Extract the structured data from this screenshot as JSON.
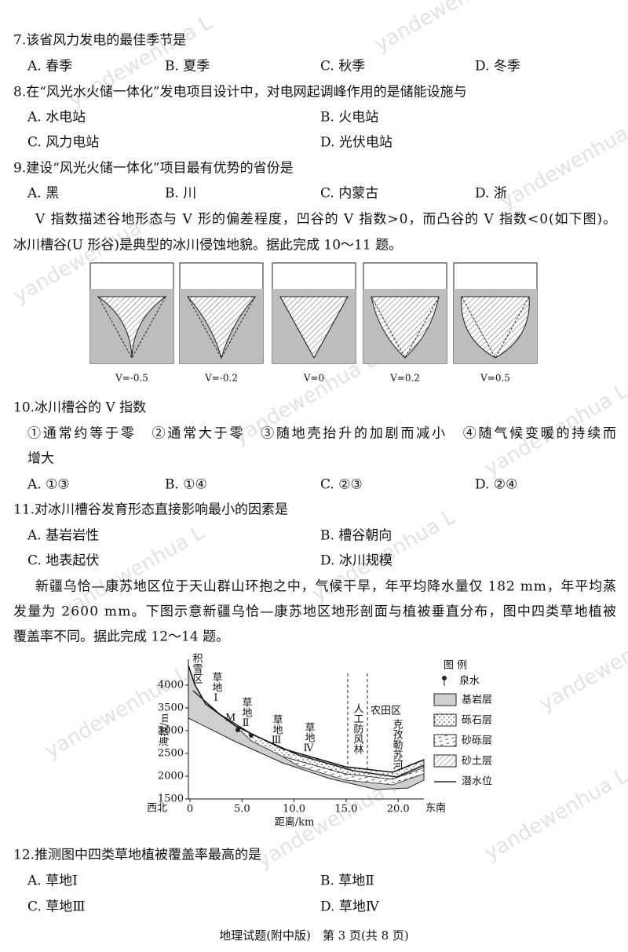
{
  "watermark": "yandewenhua L",
  "questions": [
    {
      "stem": "7.该省风力发电的最佳季节是",
      "options": [
        "A. 春季",
        "B. 夏季",
        "C. 秋季",
        "D. 冬季"
      ]
    },
    {
      "stem": "8.在“风光水火储一体化”发电项目设计中，对电网起调峰作用的是储能设施与",
      "options": [
        "A. 水电站",
        "B. 火电站",
        "C. 风力电站",
        "D. 光伏电站"
      ]
    },
    {
      "stem": "9.建设“风光火储一体化”项目最有优势的省份是",
      "options": [
        "A. 黑",
        "B. 川",
        "C. 内蒙古",
        "D. 浙"
      ]
    },
    {
      "stem": "10.冰川槽谷的 V 指数",
      "statement_lines": [
        "①通常约等于零　②通常大于零　③随地壳抬升的加剧而减小　④随气候变暖的持续而",
        "增大"
      ],
      "options": [
        "A. ①③",
        "B. ①④",
        "C. ②③",
        "D. ②④"
      ]
    },
    {
      "stem": "11.对冰川槽谷发育形态直接影响最小的因素是",
      "options": [
        "A. 基岩岩性",
        "B. 槽谷朝向",
        "C. 地表起伏",
        "D. 冰川规模"
      ]
    },
    {
      "stem": "12.推测图中四类草地植被覆盖率最高的是",
      "options": [
        "A. 草地Ⅰ",
        "B. 草地Ⅱ",
        "C. 草地Ⅲ",
        "D. 草地Ⅳ"
      ]
    }
  ],
  "passages": [
    {
      "lines": [
        "V 指数描述谷地形态与 V 形的偏差程度，凹谷的 V 指数>0，而凸谷的 V 指数<0(如下图)。",
        "冰川槽谷(U 形谷)是典型的冰川侵蚀地貌。据此完成 10～11 题。"
      ]
    },
    {
      "lines": [
        "新疆乌恰—康苏地区位于天山群山环抱之中，气候干旱，年平均降水量仅 182 mm，年平均蒸",
        "发量为 2600 mm。下图示意新疆乌恰—康苏地区地形剖面与植被垂直分布，图中四类草地植被",
        "覆盖率不同。据此完成 12～14 题。"
      ]
    }
  ],
  "figure_valleys": {
    "labels": [
      "V=-0.5",
      "V=-0.2",
      "V=0",
      "V=0.2",
      "V=0.5"
    ]
  },
  "figure_profile": {
    "y_title": "海拔/m",
    "x_title": "距离/km",
    "yticks": [
      "4000",
      "3500",
      "3000",
      "2500",
      "2000",
      "1500"
    ],
    "xticks": [
      "0",
      "5.0",
      "10.0",
      "15.0",
      "20.0"
    ],
    "left_end": "西北",
    "right_end": "东南",
    "zones": [
      "积雪区",
      "草地Ⅰ",
      "M",
      "草地Ⅱ",
      "草地Ⅲ",
      "草地Ⅳ",
      "人工防风林",
      "农田区",
      "克孜勒苏河"
    ],
    "legend_title": "图 例",
    "legend": [
      "泉水",
      "基岩层",
      "砾石层",
      "砂砾层",
      "砂土层",
      "潜水位"
    ]
  },
  "footer": "地理试题(附中版)　第 3 页(共 8 页)"
}
